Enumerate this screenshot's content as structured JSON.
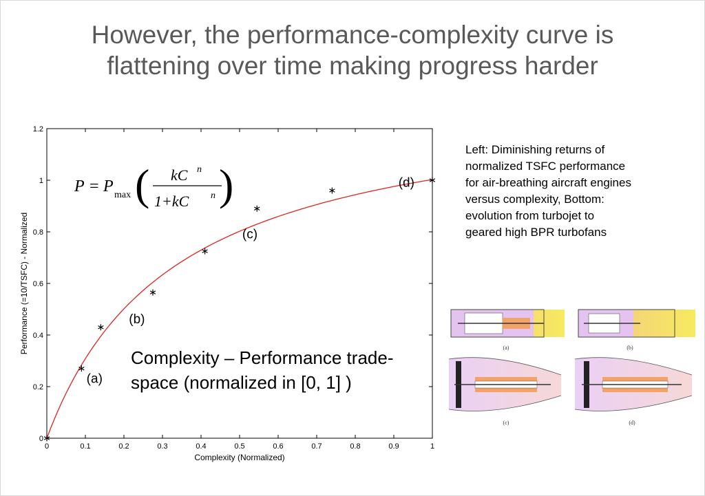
{
  "slide": {
    "title_lines": [
      "However, the performance-complexity curve is",
      "flattening over time making progress harder"
    ],
    "caption_lines": [
      "Left: Diminishing returns of",
      "normalized TSFC performance",
      "for air-breathing aircraft engines",
      "versus complexity, Bottom:",
      "evolution from turbojet to",
      "geared high BPR turbofans"
    ],
    "annotation_lines": [
      "Complexity – Performance trade-",
      "space (normalized in [0, 1] )"
    ],
    "engine_diagram_labels": [
      "(a)",
      "(b)",
      "(c)",
      "(d)"
    ]
  },
  "chart_data": {
    "type": "scatter",
    "xlabel": "Complexity (Normalized)",
    "ylabel": "Performance (=10/TSFC) - Normalized",
    "xlim": [
      0,
      1
    ],
    "ylim": [
      0,
      1.2
    ],
    "x_ticks": [
      "0",
      "0.1",
      "0.2",
      "0.3",
      "0.4",
      "0.5",
      "0.6",
      "0.7",
      "0.8",
      "0.9",
      "1"
    ],
    "y_ticks": [
      "0",
      "0.2",
      "0.4",
      "0.6",
      "0.8",
      "1",
      "1.2"
    ],
    "grid": false,
    "marker": "asterisk",
    "points": [
      {
        "x": 0.0,
        "y": 0.0
      },
      {
        "x": 0.09,
        "y": 0.27
      },
      {
        "x": 0.14,
        "y": 0.43
      },
      {
        "x": 0.275,
        "y": 0.565
      },
      {
        "x": 0.41,
        "y": 0.725
      },
      {
        "x": 0.545,
        "y": 0.89
      },
      {
        "x": 0.74,
        "y": 0.96
      },
      {
        "x": 1.0,
        "y": 1.0
      }
    ],
    "fit_curve": {
      "color": "#e0231e",
      "model": "P = Pmax(kC^n / (1 + kC^n))",
      "Pmax": 1.337,
      "k": 3.0,
      "n": 1.0
    },
    "point_labels": [
      {
        "text": "(a)",
        "x": 0.103,
        "y": 0.215
      },
      {
        "text": "(b)",
        "x": 0.213,
        "y": 0.445
      },
      {
        "text": "(c)",
        "x": 0.507,
        "y": 0.775
      },
      {
        "text": "(d)",
        "x": 0.912,
        "y": 0.975
      }
    ],
    "formula": {
      "lhs": "P",
      "pmax_main": "P",
      "pmax_sub": "max",
      "numerator": "kC",
      "numerator_exp": "n",
      "denominator": "1+kC",
      "denominator_exp": "n"
    }
  }
}
